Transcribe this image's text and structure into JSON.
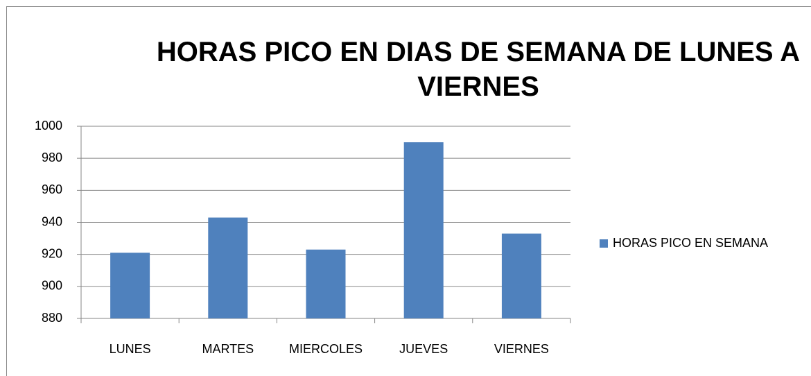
{
  "chart_data": {
    "type": "bar",
    "title": "HORAS PICO EN DIAS DE SEMANA DE LUNES A VIERNES",
    "categories": [
      "LUNES",
      "MARTES",
      "MIERCOLES",
      "JUEVES",
      "VIERNES"
    ],
    "series": [
      {
        "name": "HORAS PICO EN SEMANA",
        "color": "#4f81bd",
        "values": [
          921,
          943,
          923,
          990,
          933
        ]
      }
    ],
    "ylim": [
      880,
      1000
    ],
    "yticks": [
      880,
      900,
      920,
      940,
      960,
      980,
      1000
    ],
    "grid": true,
    "legend": "right"
  }
}
